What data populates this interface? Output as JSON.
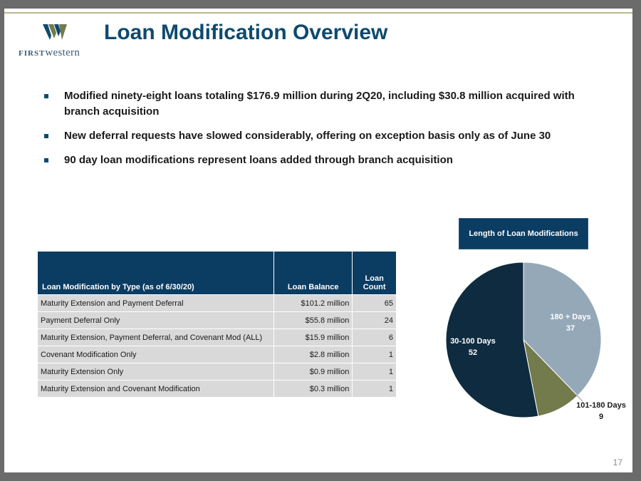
{
  "header": {
    "logo_text_first": "FIRST",
    "logo_text_western": "western",
    "title": "Loan Modification Overview"
  },
  "bullets": [
    "Modified ninety-eight loans totaling $176.9 million during 2Q20, including $30.8 million acquired with branch acquisition",
    "New deferral requests have slowed considerably, offering on exception basis only as of June 30",
    "90 day loan modifications represent loans added through branch acquisition"
  ],
  "table": {
    "headers": [
      "Loan Modification by Type (as of 6/30/20)",
      "Loan Balance",
      "Loan Count"
    ],
    "rows": [
      [
        "Maturity Extension and Payment Deferral",
        "$101.2 million",
        "65"
      ],
      [
        "Payment Deferral Only",
        "$55.8 million",
        "24"
      ],
      [
        "Maturity Extension, Payment Deferral, and Covenant Mod (ALL)",
        "$15.9 million",
        "6"
      ],
      [
        "Covenant Modification Only",
        "$2.8 million",
        "1"
      ],
      [
        "Maturity Extension Only",
        "$0.9 million",
        "1"
      ],
      [
        "Maturity Extension and Covenant Modification",
        "$0.3 million",
        "1"
      ]
    ]
  },
  "chart_data": {
    "type": "pie",
    "title": "Length of Loan Modifications",
    "slices": [
      {
        "label": "180 + Days",
        "value": 37,
        "color": "#94a8b8",
        "label_color": "#ffffff"
      },
      {
        "label": "101-180 Days",
        "value": 9,
        "color": "#737a4c",
        "label_color": "#1a1a1a"
      },
      {
        "label": "30-100 Days",
        "value": 52,
        "color": "#0f2b3f",
        "label_color": "#ffffff"
      }
    ]
  },
  "colors": {
    "title": "#0f4a6e",
    "table_header": "#0b3c62",
    "table_cell": "#d9d9d9"
  },
  "page_number": "17"
}
